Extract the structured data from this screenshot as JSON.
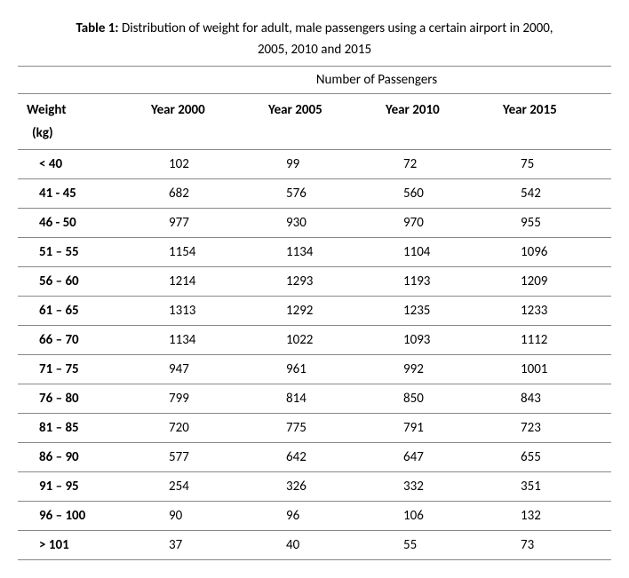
{
  "title": {
    "label": "Table 1:",
    "line1": "Distribution of weight for adult, male passengers using a certain airport in 2000,",
    "line2": "2005, 2010 and 2015"
  },
  "header": {
    "group_label": "Number of Passengers",
    "weight_col": "Weight",
    "weight_unit": "(kg)",
    "year_cols": [
      "Year 2000",
      "Year 2005",
      "Year 2010",
      "Year 2015"
    ]
  },
  "rows": [
    {
      "range": "< 40",
      "values": [
        "102",
        "99",
        "72",
        "75"
      ]
    },
    {
      "range": "41 - 45",
      "values": [
        "682",
        "576",
        "560",
        "542"
      ]
    },
    {
      "range": "46 - 50",
      "values": [
        "977",
        "930",
        "970",
        "955"
      ]
    },
    {
      "range": "51 – 55",
      "values": [
        "1154",
        "1134",
        "1104",
        "1096"
      ]
    },
    {
      "range": "56 – 60",
      "values": [
        "1214",
        "1293",
        "1193",
        "1209"
      ]
    },
    {
      "range": "61 – 65",
      "values": [
        "1313",
        "1292",
        "1235",
        "1233"
      ]
    },
    {
      "range": "66 – 70",
      "values": [
        "1134",
        "1022",
        "1093",
        "1112"
      ]
    },
    {
      "range": "71 – 75",
      "values": [
        "947",
        "961",
        "992",
        "1001"
      ]
    },
    {
      "range": "76 – 80",
      "values": [
        "799",
        "814",
        "850",
        "843"
      ]
    },
    {
      "range": "81 – 85",
      "values": [
        "720",
        "775",
        "791",
        "723"
      ]
    },
    {
      "range": "86 – 90",
      "values": [
        "577",
        "642",
        "647",
        "655"
      ]
    },
    {
      "range": "91 – 95",
      "values": [
        "254",
        "326",
        "332",
        "351"
      ]
    },
    {
      "range": "96 – 100",
      "values": [
        "90",
        "96",
        "106",
        "132"
      ]
    },
    {
      "range": "> 101",
      "values": [
        "37",
        "40",
        "55",
        "73"
      ]
    }
  ],
  "style": {
    "font_family": "Calibri, Arial, sans-serif",
    "font_size_pt": 11,
    "border_color": "#888888",
    "text_color": "#000000",
    "background": "#ffffff"
  }
}
